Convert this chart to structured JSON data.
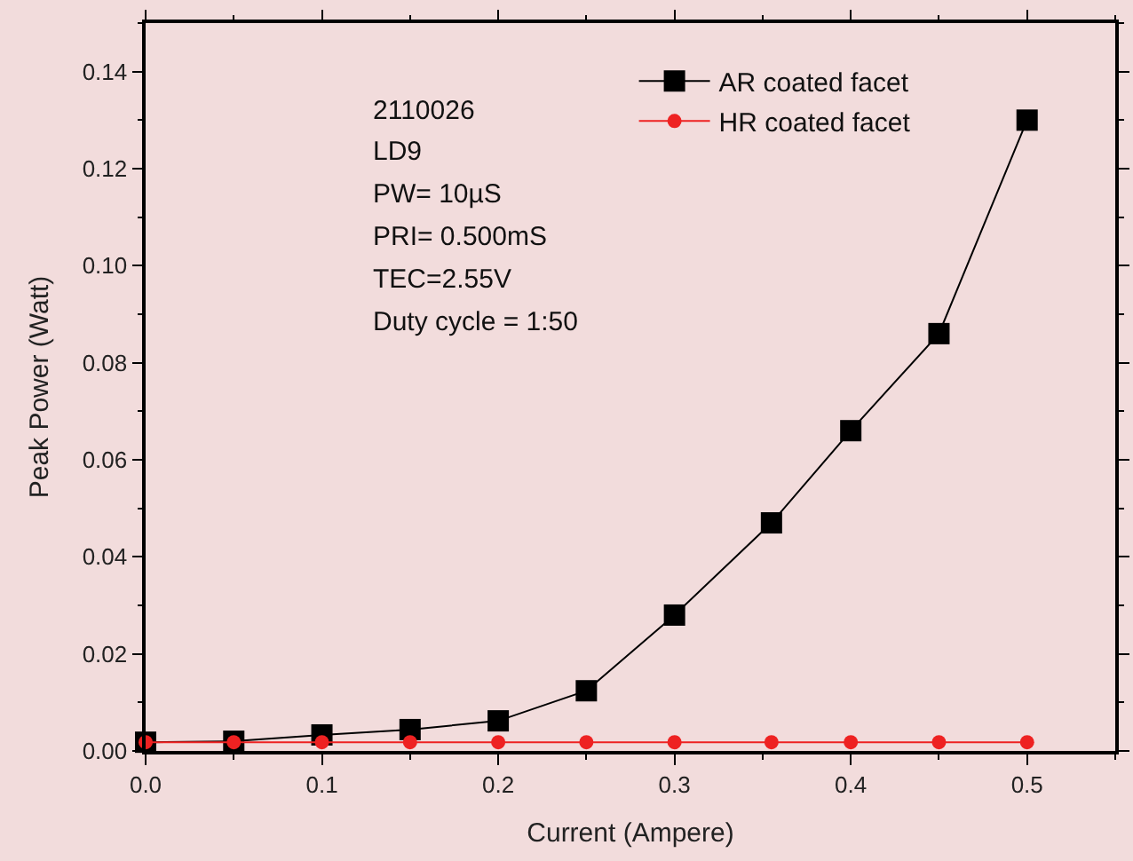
{
  "chart_data": {
    "type": "line",
    "xlabel": "Current (Ampere)",
    "ylabel": "Peak Power (Watt)",
    "annotations": [
      "2110026",
      "LD9",
      "PW= 10µS",
      "PRI= 0.500mS",
      "TEC=2.55V",
      "Duty cycle = 1:50"
    ],
    "x": [
      0,
      0.05,
      0.1,
      0.15,
      0.2,
      0.25,
      0.3,
      0.355,
      0.4,
      0.45,
      0.5
    ],
    "series": [
      {
        "name": "AR coated facet",
        "color": "#000000",
        "marker": "square",
        "values": [
          0.0018,
          0.002,
          0.0033,
          0.0044,
          0.0062,
          0.0124,
          0.028,
          0.047,
          0.066,
          0.086,
          0.13
        ]
      },
      {
        "name": "HR coated facet",
        "color": "#ee2222",
        "marker": "circle",
        "values": [
          0.0018,
          0.0018,
          0.0018,
          0.0018,
          0.0018,
          0.0018,
          0.0018,
          0.0018,
          0.0018,
          0.0018,
          0.0018
        ]
      }
    ],
    "xlim": [
      0,
      0.55
    ],
    "xticks": [
      {
        "value": 0,
        "label": "0.0"
      },
      0.1,
      0.2,
      0.3,
      0.4,
      0.5
    ],
    "ylim": [
      0,
      0.15
    ],
    "yticks": [
      {
        "value": 0,
        "label": "0.00"
      },
      0.02,
      0.04,
      0.06,
      0.08,
      {
        "value": 0.1,
        "label": "0.10"
      },
      0.12,
      0.14
    ],
    "grid": false,
    "legend": "top right",
    "line_style": "solid"
  }
}
